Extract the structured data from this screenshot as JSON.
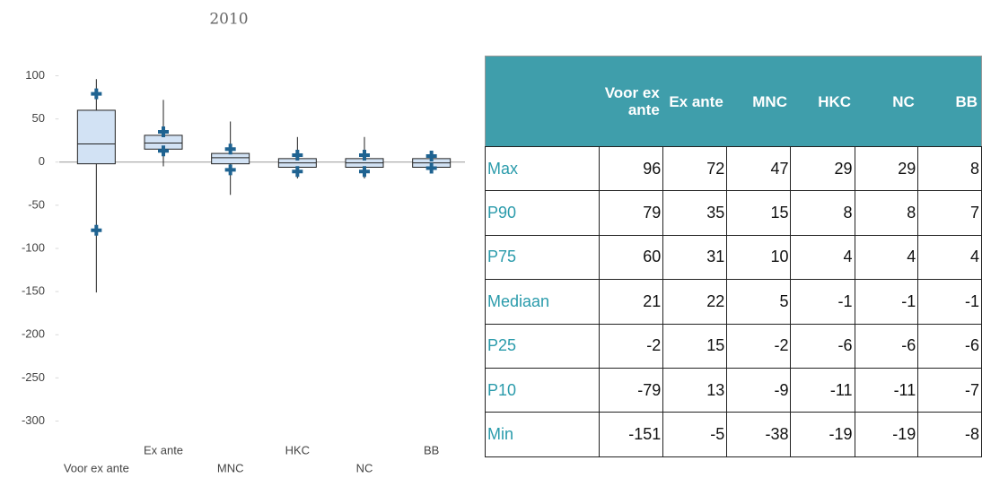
{
  "chart_data": {
    "type": "box",
    "title": "2010",
    "categories": [
      "Voor ex ante",
      "Ex ante",
      "MNC",
      "HKC",
      "NC",
      "BB"
    ],
    "series": [
      {
        "name": "Max",
        "values": [
          96,
          72,
          47,
          29,
          29,
          8
        ]
      },
      {
        "name": "P90",
        "values": [
          79,
          35,
          15,
          8,
          8,
          7
        ]
      },
      {
        "name": "P75",
        "values": [
          60,
          31,
          10,
          4,
          4,
          4
        ]
      },
      {
        "name": "Mediaan",
        "values": [
          21,
          22,
          5,
          -1,
          -1,
          -1
        ]
      },
      {
        "name": "P25",
        "values": [
          -2,
          15,
          -2,
          -6,
          -6,
          -6
        ]
      },
      {
        "name": "P10",
        "values": [
          -79,
          13,
          -9,
          -11,
          -11,
          -7
        ]
      },
      {
        "name": "Min",
        "values": [
          -151,
          -5,
          -38,
          -19,
          -19,
          -8
        ]
      }
    ],
    "box_color": "#d2e2f4",
    "marker_color": "#1f6391",
    "ylim": [
      -315,
      115
    ],
    "yticks": [
      100,
      50,
      0,
      -50,
      -100,
      -150,
      -200,
      -250,
      -300
    ]
  }
}
